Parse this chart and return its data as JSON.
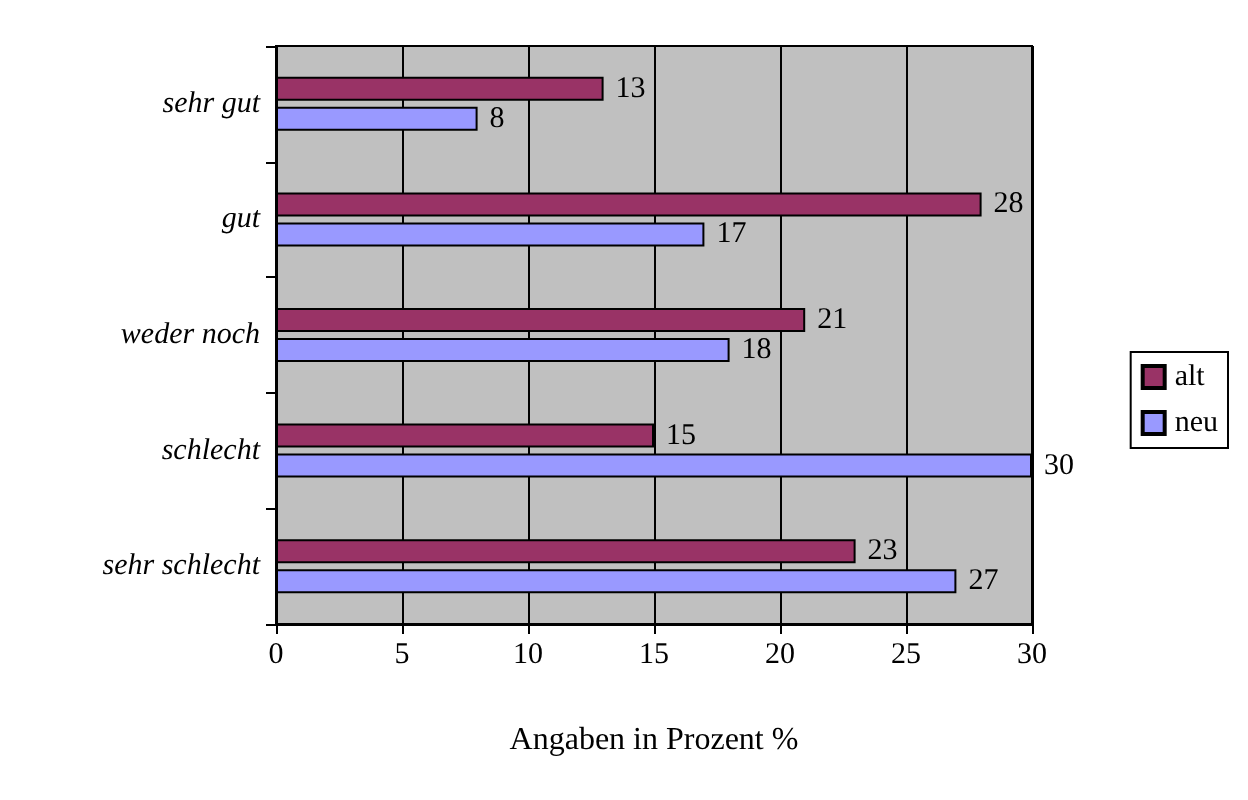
{
  "chart_data": {
    "type": "bar",
    "orientation": "horizontal",
    "xlabel": "Angaben in Prozent %",
    "categories": [
      "sehr gut",
      "gut",
      "weder noch",
      "schlecht",
      "sehr schlecht"
    ],
    "series": [
      {
        "name": "alt",
        "color": "#993366",
        "values": [
          13,
          28,
          21,
          15,
          23
        ]
      },
      {
        "name": "neu",
        "color": "#9999ff",
        "values": [
          8,
          17,
          18,
          30,
          27
        ]
      }
    ],
    "xlim": [
      0,
      30
    ],
    "xticks": [
      0,
      5,
      10,
      15,
      20,
      25,
      30
    ],
    "grid": "x",
    "legend": "right",
    "data_labels": true
  }
}
